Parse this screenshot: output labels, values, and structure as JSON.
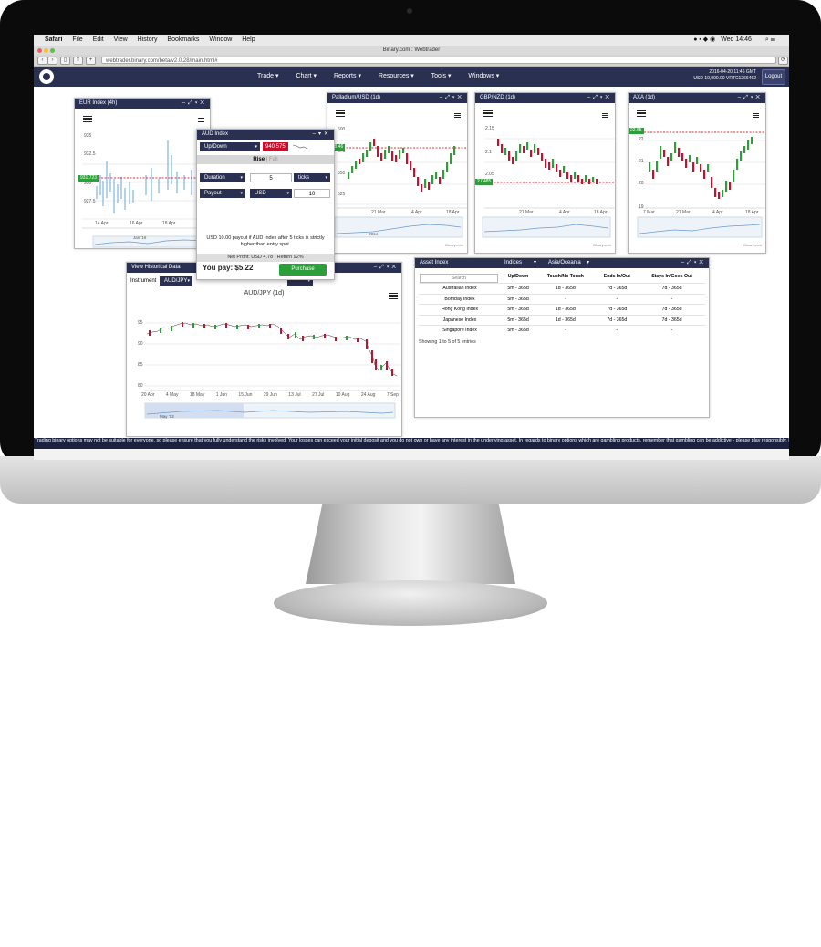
{
  "mac_menu": {
    "app": "Safari",
    "items": [
      "File",
      "Edit",
      "View",
      "History",
      "Bookmarks",
      "Window",
      "Help"
    ],
    "clock": "Wed 14:46"
  },
  "safari": {
    "window_title": "Binary.com : Webtrader",
    "url": "webtrader.binary.com/beta/v2.0.28/main.html#"
  },
  "nav": {
    "items": [
      "Trade ▾",
      "Chart ▾",
      "Reports ▾",
      "Resources ▾",
      "Tools ▾",
      "Windows ▾"
    ],
    "datetime": "2016-04-20 11:46 GMT",
    "balance": "USD 10,000.00",
    "account": "VRTC1266462",
    "logout": "Logout"
  },
  "eur_index": {
    "title": "EUR Index (4h)",
    "yticks": [
      "935",
      "932.5",
      "930",
      "927.5"
    ],
    "price": "931.723",
    "xticks": [
      "14 Apr",
      "16 Apr",
      "18 Apr"
    ],
    "nav_label": "Jan '16"
  },
  "palladium": {
    "title": "Palladium/USD (1d)",
    "yticks": [
      "600",
      "575",
      "550",
      "525"
    ],
    "price": "578.46",
    "xticks": [
      "21 Mar",
      "4 Apr",
      "18 Apr"
    ],
    "nav_label": "2014",
    "credit": "Binary.com"
  },
  "gbpnzd": {
    "title": "GBP/NZD (1d)",
    "yticks": [
      "2.15",
      "2.1",
      "2.05"
    ],
    "price": "2.0485",
    "xticks": [
      "21 Mar",
      "4 Apr",
      "18 Apr"
    ],
    "credit": "Binary.com"
  },
  "axa": {
    "title": "AXA (1d)",
    "yticks": [
      "22",
      "21",
      "20",
      "19"
    ],
    "price": "22.65",
    "xticks": [
      "7 Mar",
      "21 Mar",
      "4 Apr",
      "18 Apr"
    ],
    "credit": "Binary.com"
  },
  "aud_index": {
    "title": "AUD Index",
    "contract": "Up/Down",
    "spot": "940.575",
    "tab_rise": "Rise",
    "tab_fall": "Fall",
    "duration_label": "Duration",
    "duration_value": "5",
    "duration_unit": "ticks",
    "payout_label": "Payout",
    "currency": "USD",
    "amount": "10",
    "description": "USD 10.00 payout if AUD Index after 5 ticks is strictly higher than entry spot.",
    "net_profit": "Net Profit: USD 4.78 | Return 92%",
    "you_pay": "You pay: $5.22",
    "purchase": "Purchase"
  },
  "history": {
    "title": "View Historical Data",
    "instrument_label": "Instrument",
    "instrument": "AUD/JPY",
    "chart_title": "AUD/JPY (1d)",
    "yticks": [
      "95",
      "90",
      "85",
      "80"
    ],
    "xticks": [
      "20 Apr",
      "4 May",
      "18 May",
      "1 Jun",
      "15 Jun",
      "29 Jun",
      "13 Jul",
      "27 Jul",
      "10 Aug",
      "24 Aug",
      "7 Sep"
    ],
    "nav_label": "May '13"
  },
  "asset_index": {
    "title": "Asset Index",
    "filter1": "Indices",
    "filter2": "Asia/Oceania",
    "search_placeholder": "Search",
    "columns": [
      "Up/Down",
      "Touch/No Touch",
      "Ends In/Out",
      "Stays In/Goes Out"
    ],
    "rows": [
      [
        "Australian Index",
        "5m - 365d",
        "1d - 365d",
        "7d - 365d",
        "7d - 365d"
      ],
      [
        "Bombay Index",
        "5m - 365d",
        "-",
        "-",
        "-"
      ],
      [
        "Hong Kong Index",
        "5m - 365d",
        "1d - 365d",
        "7d - 365d",
        "7d - 365d"
      ],
      [
        "Japanese Index",
        "5m - 365d",
        "1d - 365d",
        "7d - 365d",
        "7d - 365d"
      ],
      [
        "Singapore Index",
        "5m - 365d",
        "-",
        "-",
        "-"
      ]
    ],
    "footer": "Showing 1 to 5 of 5 entries"
  },
  "disclaimer": "Trading binary options may not be suitable for everyone, so please ensure that you fully understand the risks involved. Your losses can exceed your initial deposit and you do not own or have any interest in the underlying asset. In regards to binary options which are gambling products, remember that gambling can be addictive - please play responsibly. Read about Responsible Trading",
  "colors": {
    "navy": "#2a3052",
    "green": "#2c9e3a",
    "red": "#c8102e"
  }
}
